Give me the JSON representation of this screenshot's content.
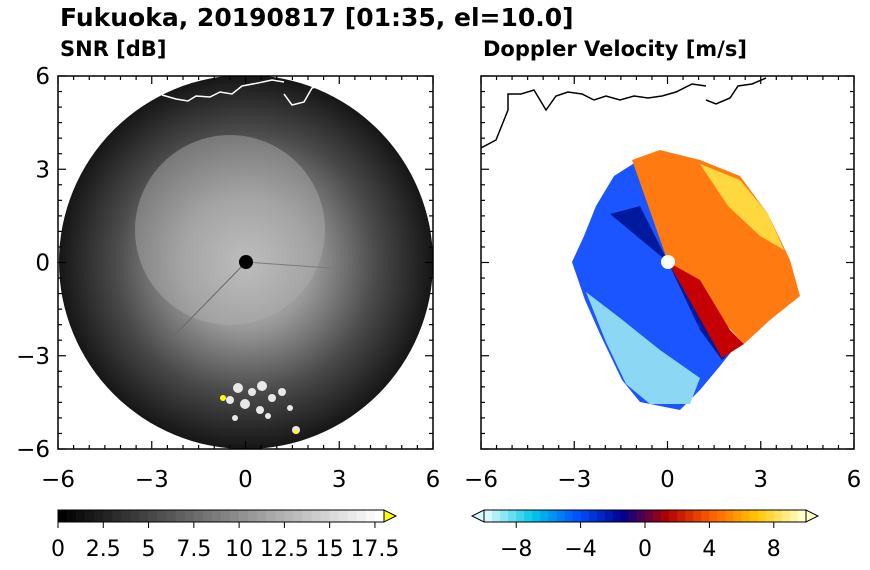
{
  "figure": {
    "title": "Fukuoka, 20190817 [01:35, el=10.0]"
  },
  "chart_data": [
    {
      "type": "heatmap",
      "title": "SNR [dB]",
      "xlim": [
        -6,
        6
      ],
      "ylim": [
        -6,
        6
      ],
      "x_ticks": [
        "−6",
        "−3",
        "0",
        "3",
        "6"
      ],
      "y_ticks": [
        "6",
        "3",
        "0",
        "−3",
        "−6"
      ],
      "tick_values": [
        -6,
        -3,
        0,
        3,
        6
      ],
      "scan_radius": 6,
      "colorbar": {
        "min": 0,
        "max": 18,
        "step": 0.5,
        "extend": "max",
        "ticks": [
          "0",
          "2.5",
          "5",
          "7.5",
          "10",
          "12.5",
          "15",
          "17.5"
        ],
        "tick_values": [
          0,
          2.5,
          5,
          7.5,
          10,
          12.5,
          15,
          17.5
        ],
        "colors": [
          "#000000",
          "#ffffff",
          "#ffff00"
        ]
      }
    },
    {
      "type": "heatmap",
      "title": "Doppler Velocity [m/s]",
      "xlim": [
        -6,
        6
      ],
      "ylim": [
        -6,
        6
      ],
      "x_ticks": [
        "−6",
        "−3",
        "0",
        "3",
        "6"
      ],
      "y_ticks": [
        "6",
        "3",
        "0",
        "−3",
        "−6"
      ],
      "tick_values": [
        -6,
        -3,
        0,
        3,
        6
      ],
      "colorbar": {
        "min": -10,
        "max": 10,
        "step": 0.5,
        "extend": "both",
        "ticks": [
          "−8",
          "−4",
          "0",
          "4",
          "8"
        ],
        "tick_values": [
          -8,
          -4,
          0,
          4,
          8
        ],
        "colors": [
          "#d8f8ff",
          "#00c8e8",
          "#0050ff",
          "#000090",
          "#b40000",
          "#ff6000",
          "#ffc800",
          "#ffffc8"
        ]
      }
    }
  ]
}
